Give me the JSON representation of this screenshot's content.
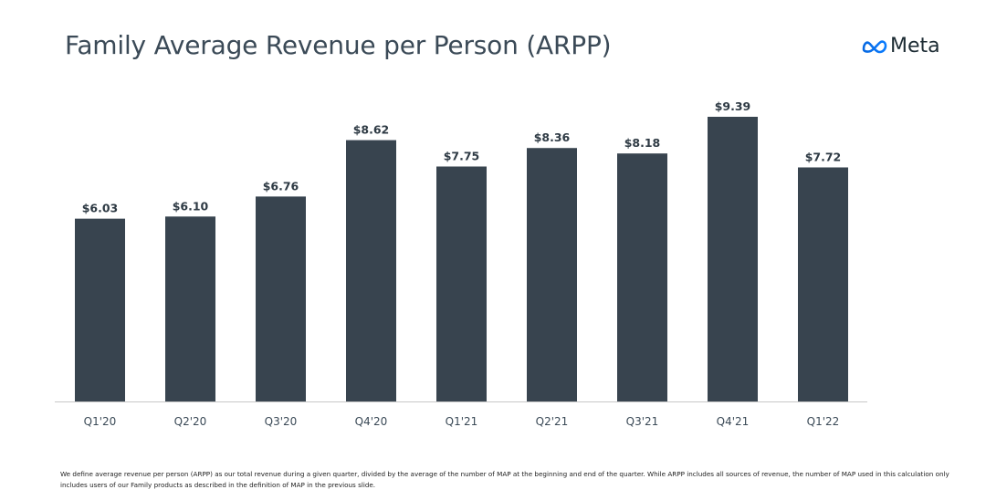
{
  "header": {
    "title": "Family Average Revenue per Person (ARPP)",
    "logo_text": "Meta",
    "logo_icon": "meta-infinity-logo"
  },
  "colors": {
    "bar": "#38444f",
    "title": "#3b4a57",
    "logo_gradient_start": "#0668e1",
    "logo_gradient_end": "#0082fb"
  },
  "chart_data": {
    "type": "bar",
    "title": "Family Average Revenue per Person (ARPP)",
    "xlabel": "",
    "ylabel": "",
    "categories": [
      "Q1'20",
      "Q2'20",
      "Q3'20",
      "Q4'20",
      "Q1'21",
      "Q2'21",
      "Q3'21",
      "Q4'21",
      "Q1'22"
    ],
    "values": [
      6.03,
      6.1,
      6.76,
      8.62,
      7.75,
      8.36,
      8.18,
      9.39,
      7.72
    ],
    "data_labels": [
      "$6.03",
      "$6.10",
      "$6.76",
      "$8.62",
      "$7.75",
      "$8.36",
      "$8.18",
      "$9.39",
      "$7.72"
    ],
    "unit": "USD",
    "ylim": [
      0,
      9.39
    ],
    "grid": false,
    "legend": "none"
  },
  "footnote": "We define average revenue per person (ARPP) as our total revenue during a given quarter, divided by the average of the number  of MAP at the beginning and end of the quarter. While ARPP includes all sources of revenue, the number of MAP used in this calculation only includes users of our Family products as described in the definition of MAP in the previous slide."
}
